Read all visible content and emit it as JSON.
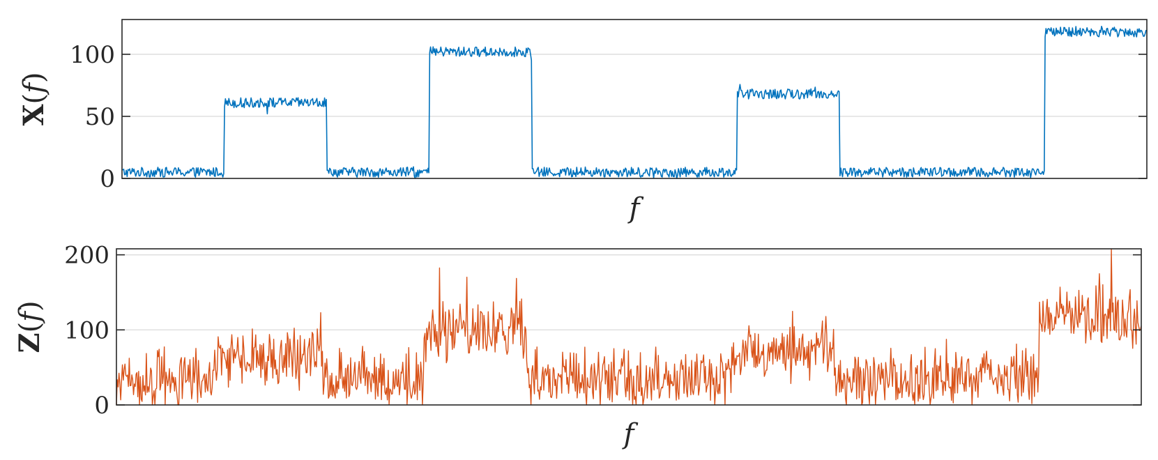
{
  "chart_data": [
    {
      "type": "line",
      "ylabel": {
        "symbol": "X",
        "arg": "f"
      },
      "xlabel": "f",
      "ylim": [
        0,
        128
      ],
      "yticks": [
        0,
        50,
        100
      ],
      "ytick_labels": [
        "0",
        "50",
        "100"
      ],
      "grid": true,
      "color": "#0072BD",
      "n_points": 1200,
      "noise_amplitude": 4,
      "segments": [
        {
          "x_start": 0.0,
          "x_end": 0.1,
          "level": 5
        },
        {
          "x_start": 0.1,
          "x_end": 0.2,
          "level": 61
        },
        {
          "x_start": 0.2,
          "x_end": 0.3,
          "level": 5
        },
        {
          "x_start": 0.3,
          "x_end": 0.4,
          "level": 102
        },
        {
          "x_start": 0.4,
          "x_end": 0.6,
          "level": 5
        },
        {
          "x_start": 0.6,
          "x_end": 0.7,
          "level": 68
        },
        {
          "x_start": 0.7,
          "x_end": 0.9,
          "level": 5
        },
        {
          "x_start": 0.9,
          "x_end": 1.0,
          "level": 118
        }
      ]
    },
    {
      "type": "line",
      "ylabel": {
        "symbol": "Z",
        "arg": "f"
      },
      "xlabel": "f",
      "ylim": [
        0,
        208
      ],
      "yticks": [
        0,
        100,
        200
      ],
      "ytick_labels": [
        "0",
        "100",
        "200"
      ],
      "grid": true,
      "color": "#D95319",
      "n_points": 1200,
      "noise_amplitude": 32,
      "segments": [
        {
          "x_start": 0.0,
          "x_end": 0.1,
          "level": 28
        },
        {
          "x_start": 0.1,
          "x_end": 0.2,
          "level": 58
        },
        {
          "x_start": 0.2,
          "x_end": 0.3,
          "level": 30
        },
        {
          "x_start": 0.3,
          "x_end": 0.4,
          "level": 95
        },
        {
          "x_start": 0.4,
          "x_end": 0.6,
          "level": 30
        },
        {
          "x_start": 0.6,
          "x_end": 0.7,
          "level": 68
        },
        {
          "x_start": 0.7,
          "x_end": 0.9,
          "level": 30
        },
        {
          "x_start": 0.9,
          "x_end": 1.0,
          "level": 112
        }
      ]
    }
  ]
}
